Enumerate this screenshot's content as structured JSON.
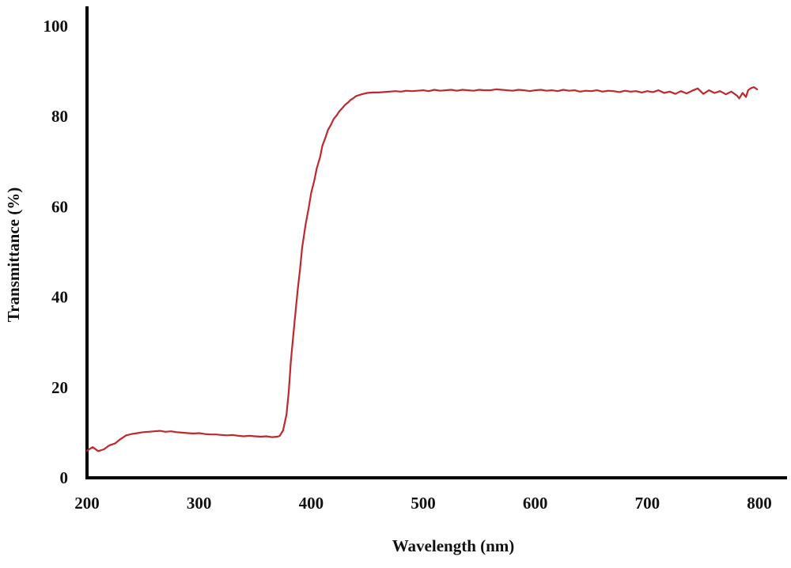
{
  "chart_data": {
    "type": "line",
    "title": "",
    "xlabel": "Wavelength (nm)",
    "ylabel": "Transmittance   (%)",
    "xlim": [
      200,
      800
    ],
    "ylim": [
      0,
      100
    ],
    "xticks": [
      200,
      300,
      400,
      500,
      600,
      700,
      800
    ],
    "yticks": [
      0,
      20,
      40,
      60,
      80,
      100
    ],
    "grid": false,
    "legend": "none",
    "series": [
      {
        "color": "#c0282d",
        "x": [
          200,
          205,
          210,
          215,
          220,
          225,
          230,
          235,
          240,
          245,
          250,
          255,
          260,
          265,
          270,
          275,
          280,
          285,
          290,
          295,
          300,
          305,
          310,
          315,
          320,
          325,
          330,
          335,
          340,
          345,
          350,
          355,
          360,
          365,
          370,
          372,
          375,
          378,
          380,
          382,
          385,
          388,
          390,
          392,
          395,
          398,
          400,
          403,
          405,
          408,
          410,
          413,
          415,
          418,
          420,
          423,
          425,
          428,
          430,
          433,
          435,
          438,
          440,
          445,
          450,
          455,
          460,
          465,
          470,
          475,
          480,
          485,
          490,
          495,
          500,
          505,
          510,
          515,
          520,
          525,
          530,
          535,
          540,
          545,
          550,
          555,
          560,
          565,
          570,
          575,
          580,
          585,
          590,
          595,
          600,
          605,
          610,
          615,
          620,
          625,
          630,
          635,
          640,
          645,
          650,
          655,
          660,
          665,
          670,
          675,
          680,
          685,
          690,
          695,
          700,
          705,
          710,
          715,
          720,
          725,
          730,
          735,
          740,
          745,
          750,
          755,
          760,
          765,
          770,
          775,
          780,
          782,
          785,
          788,
          790,
          792,
          795,
          798
        ],
        "y": [
          6.0,
          6.8,
          5.9,
          6.3,
          7.2,
          7.6,
          8.6,
          9.4,
          9.7,
          9.9,
          10.1,
          10.2,
          10.3,
          10.4,
          10.2,
          10.3,
          10.1,
          10.0,
          9.9,
          9.8,
          9.9,
          9.7,
          9.6,
          9.6,
          9.5,
          9.4,
          9.5,
          9.3,
          9.2,
          9.3,
          9.2,
          9.1,
          9.2,
          9.0,
          9.1,
          9.3,
          10.5,
          14.0,
          19.0,
          26.0,
          34.0,
          41.5,
          46.0,
          51.0,
          56.0,
          60.0,
          63.0,
          66.0,
          68.5,
          71.0,
          73.5,
          75.5,
          77.0,
          78.3,
          79.4,
          80.3,
          81.1,
          81.9,
          82.5,
          83.1,
          83.6,
          84.1,
          84.5,
          84.9,
          85.2,
          85.3,
          85.3,
          85.4,
          85.5,
          85.6,
          85.5,
          85.7,
          85.6,
          85.7,
          85.8,
          85.6,
          85.9,
          85.7,
          85.8,
          85.9,
          85.7,
          85.9,
          85.8,
          85.7,
          85.9,
          85.8,
          85.8,
          86.0,
          85.9,
          85.8,
          85.7,
          85.9,
          85.8,
          85.6,
          85.8,
          85.9,
          85.7,
          85.8,
          85.6,
          85.9,
          85.7,
          85.8,
          85.5,
          85.7,
          85.6,
          85.8,
          85.5,
          85.7,
          85.6,
          85.4,
          85.7,
          85.5,
          85.6,
          85.3,
          85.6,
          85.4,
          85.8,
          85.2,
          85.5,
          85.0,
          85.6,
          85.1,
          85.7,
          86.2,
          85.0,
          85.8,
          85.2,
          85.6,
          84.9,
          85.5,
          84.6,
          84.0,
          85.2,
          84.3,
          85.8,
          86.2,
          86.5,
          86.0
        ]
      }
    ]
  }
}
